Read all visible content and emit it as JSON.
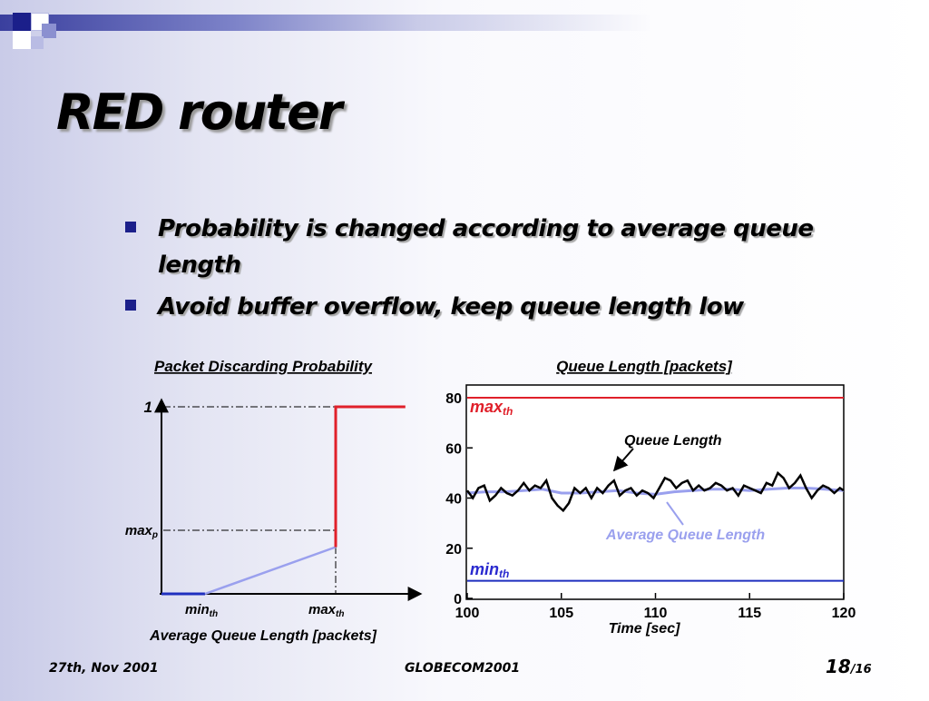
{
  "slide": {
    "title": "RED router",
    "bullets": [
      "Probability is changed according to average queue length",
      "Avoid buffer overflow, keep queue length low"
    ]
  },
  "left_chart": {
    "title": "Packet Discarding Probability",
    "xlabel": "Average Queue Length [packets]",
    "y_tick_top": "1",
    "maxp_base": "max",
    "maxp_sub": "p",
    "min_base": "min",
    "max_base": "max",
    "th_sub": "th"
  },
  "right_chart": {
    "title": "Queue Length [packets]",
    "xlabel": "Time [sec]",
    "max_base": "max",
    "min_base": "min",
    "th_sub": "th",
    "annotation_queue": "Queue Length",
    "annotation_avg": "Average Queue Length"
  },
  "footer": {
    "date": "27th, Nov 2001",
    "conference": "GLOBECOM2001",
    "page": "18",
    "page_total": "/16"
  },
  "colors": {
    "accent": "#1b1f8a",
    "threshold_max": "#e0202a",
    "threshold_min": "#1f2fbf",
    "avg_line": "#9aa0ee",
    "label_red": "#e0202a",
    "label_blue": "#2a2acf",
    "label_lavender": "#9aa0ee"
  },
  "chart_data": [
    {
      "type": "line",
      "title": "Packet Discarding Probability",
      "xlabel": "Average Queue Length [packets]",
      "ylabel": "",
      "x_ticks": [
        "min_th",
        "max_th"
      ],
      "y_ticks": [
        "max_p",
        "1"
      ],
      "series": [
        {
          "points": [
            [
              0,
              0
            ],
            [
              0.25,
              0
            ],
            [
              1,
              0.25
            ],
            [
              1,
              1
            ],
            [
              1.4,
              1
            ]
          ]
        }
      ],
      "ylim": [
        0,
        1
      ]
    },
    {
      "type": "line",
      "title": "Queue Length [packets]",
      "xlabel": "Time [sec]",
      "ylabel": "",
      "xlim": [
        100,
        120
      ],
      "ylim": [
        0,
        80
      ],
      "x_ticks": [
        100,
        105,
        110,
        115,
        120
      ],
      "y_ticks": [
        0,
        20,
        40,
        60,
        80
      ],
      "thresholds": {
        "max_th": 80,
        "min_th": 7
      },
      "series": [
        {
          "name": "Queue Length",
          "x": [
            100,
            100.3,
            100.6,
            100.9,
            101.2,
            101.5,
            101.8,
            102.1,
            102.4,
            102.7,
            103,
            103.3,
            103.6,
            103.9,
            104.2,
            104.5,
            104.8,
            105.1,
            105.4,
            105.7,
            106,
            106.3,
            106.6,
            106.9,
            107.2,
            107.5,
            107.8,
            108.1,
            108.4,
            108.7,
            109,
            109.3,
            109.6,
            109.9,
            110.2,
            110.5,
            110.8,
            111.1,
            111.4,
            111.7,
            112,
            112.3,
            112.6,
            112.9,
            113.2,
            113.5,
            113.8,
            114.1,
            114.4,
            114.7,
            115,
            115.3,
            115.6,
            115.9,
            116.2,
            116.5,
            116.8,
            117.1,
            117.4,
            117.7,
            118,
            118.3,
            118.6,
            118.9,
            119.2,
            119.5,
            119.8,
            120
          ],
          "y": [
            43,
            40,
            44,
            45,
            39,
            41,
            44,
            42,
            41,
            43,
            46,
            43,
            45,
            44,
            47,
            40,
            37,
            35,
            38,
            44,
            42,
            44,
            40,
            44,
            42,
            45,
            47,
            41,
            43,
            44,
            41,
            43,
            42,
            40,
            44,
            48,
            47,
            44,
            46,
            47,
            43,
            45,
            43,
            44,
            46,
            45,
            43,
            44,
            41,
            45,
            44,
            43,
            42,
            46,
            45,
            50,
            48,
            44,
            46,
            49,
            44,
            40,
            43,
            45,
            44,
            42,
            44,
            43
          ]
        },
        {
          "name": "Average Queue Length",
          "x": [
            100,
            101,
            102,
            103,
            104,
            105,
            106,
            107,
            108,
            109,
            110,
            111,
            112,
            113,
            114,
            115,
            116,
            117,
            118,
            119,
            120
          ],
          "y": [
            42,
            42.5,
            42.5,
            43,
            43.5,
            42,
            42,
            42.5,
            43,
            42,
            41.5,
            42.5,
            43,
            43.5,
            43.5,
            43,
            43.5,
            44,
            44,
            43.5,
            43
          ]
        }
      ]
    }
  ]
}
